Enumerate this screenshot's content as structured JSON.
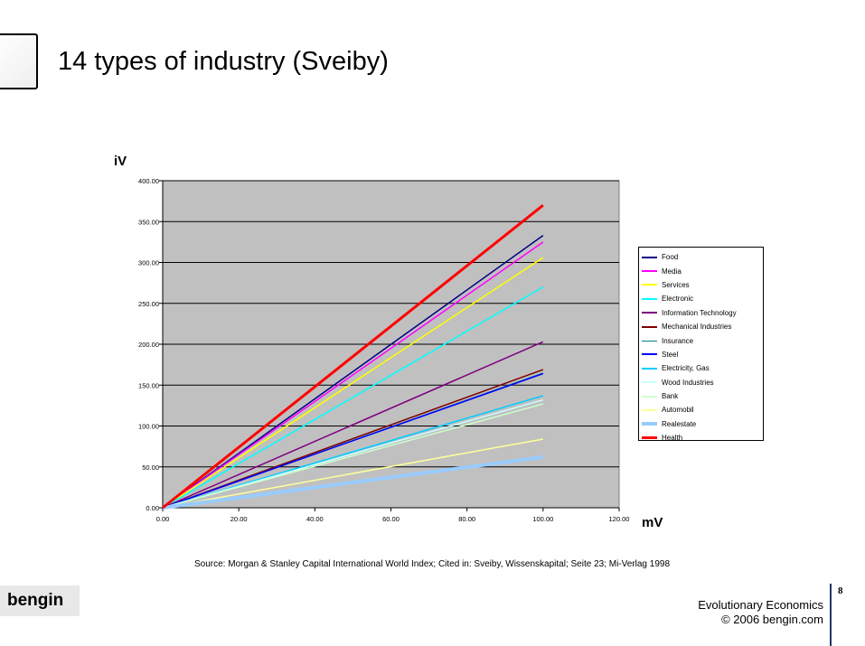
{
  "slide": {
    "title": "14 types of industry (Sveiby)",
    "source": "Source: Morgan & Stanley Capital International World Index; Cited in: Sveiby, Wissenskapital; Seite 23; Mi-Verlag 1998",
    "logo_text": "bengin",
    "footer_course": "Evolutionary Economics",
    "footer_copyright": "© 2006 bengin.com",
    "page_number": "8"
  },
  "chart_data": {
    "type": "line",
    "ylabel": "iV",
    "xlabel": "mV",
    "xlim": [
      0,
      120
    ],
    "ylim": [
      0,
      400
    ],
    "x_ticks": [
      "0.00",
      "20.00",
      "40.00",
      "60.00",
      "80.00",
      "100.00",
      "120.00"
    ],
    "y_ticks": [
      "0.00",
      "50.00",
      "100.00",
      "150.00",
      "200.00",
      "250.00",
      "300.00",
      "350.00",
      "400.00"
    ],
    "grid": true,
    "legend_position": "right",
    "plot_background": "#c0c0c0",
    "series": [
      {
        "name": "Food",
        "color": "#000080",
        "width": 1.5,
        "x": [
          0,
          100
        ],
        "y": [
          0,
          333
        ]
      },
      {
        "name": "Media",
        "color": "#ff00ff",
        "width": 1.5,
        "x": [
          0,
          100
        ],
        "y": [
          0,
          325
        ]
      },
      {
        "name": "Services",
        "color": "#ffff00",
        "width": 1.5,
        "x": [
          0,
          100
        ],
        "y": [
          0,
          306
        ]
      },
      {
        "name": "Electronic",
        "color": "#00ffff",
        "width": 1.5,
        "x": [
          0,
          100
        ],
        "y": [
          0,
          270
        ]
      },
      {
        "name": "Information Technology",
        "color": "#800080",
        "width": 1.5,
        "x": [
          0,
          100
        ],
        "y": [
          0,
          203
        ]
      },
      {
        "name": "Mechanical Industries",
        "color": "#800000",
        "width": 1.5,
        "x": [
          0,
          100
        ],
        "y": [
          0,
          169
        ]
      },
      {
        "name": "Insurance",
        "color": "#008080",
        "width": 1,
        "x": [
          0,
          100
        ],
        "y": [
          0,
          165
        ]
      },
      {
        "name": "Steel",
        "color": "#0000ff",
        "width": 1.5,
        "x": [
          0,
          100
        ],
        "y": [
          0,
          164
        ]
      },
      {
        "name": "Electricity, Gas",
        "color": "#00ccff",
        "width": 1.5,
        "x": [
          0,
          100
        ],
        "y": [
          0,
          137
        ]
      },
      {
        "name": "Wood Industries",
        "color": "#ccffff",
        "width": 1.5,
        "x": [
          0,
          100
        ],
        "y": [
          0,
          132
        ]
      },
      {
        "name": "Bank",
        "color": "#ccffcc",
        "width": 1.5,
        "x": [
          0,
          100
        ],
        "y": [
          0,
          127
        ]
      },
      {
        "name": "Automobil",
        "color": "#ffff99",
        "width": 1.5,
        "x": [
          0,
          100
        ],
        "y": [
          0,
          84
        ]
      },
      {
        "name": "Realestate",
        "color": "#99ccff",
        "width": 4,
        "x": [
          0,
          100
        ],
        "y": [
          0,
          62
        ]
      },
      {
        "name": "Health",
        "color": "#ff0000",
        "width": 3,
        "x": [
          0,
          100
        ],
        "y": [
          0,
          370
        ]
      }
    ]
  }
}
